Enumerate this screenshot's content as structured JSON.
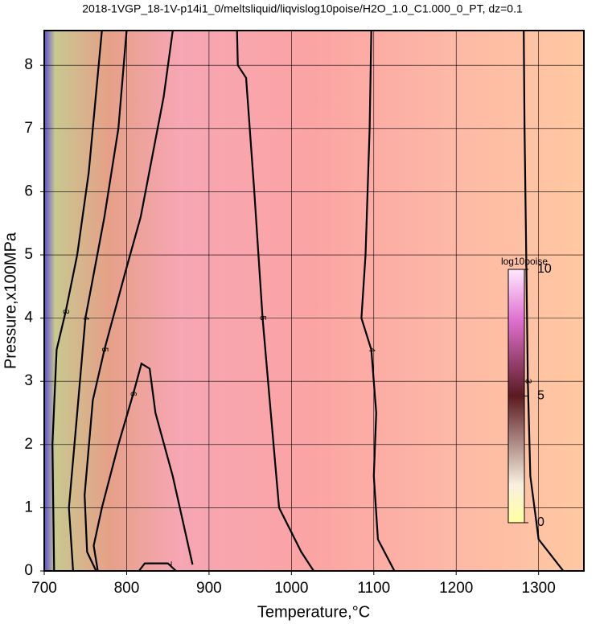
{
  "chart_data": {
    "type": "contour",
    "title": "2018-1VGP_18-1V-p14i1_0/meltsliquid/liqvislog10poise/H2O_1.0_C1.000_0_PT, dz=0.1",
    "x_label": "Temperature,°C",
    "y_label": "Pressure,x100MPa",
    "xlim": [
      700,
      1355
    ],
    "ylim": [
      0,
      8.55
    ],
    "xticks": [
      700,
      800,
      900,
      1000,
      1100,
      1200,
      1300
    ],
    "yticks": [
      0,
      1,
      2,
      3,
      4,
      5,
      6,
      7,
      8
    ],
    "grid": true,
    "contours": [
      {
        "level": 3,
        "x": [
          1330,
          1300,
          1290,
          1287,
          1285,
          1283,
          1282
        ],
        "y": [
          0,
          0.5,
          1.5,
          3,
          5,
          7,
          8.55
        ]
      },
      {
        "level": 4,
        "x": [
          1125,
          1105,
          1100,
          1103,
          1097,
          1085,
          1090,
          1095,
          1097
        ],
        "y": [
          0,
          0.5,
          1.5,
          2.5,
          3.5,
          4.0,
          5,
          7,
          8.55
        ]
      },
      {
        "level": 5,
        "x": [
          1027,
          1012,
          985,
          975,
          965,
          955,
          945,
          935,
          934
        ],
        "y": [
          0,
          0.3,
          1,
          2.5,
          4,
          6,
          7.8,
          8.0,
          8.55
        ]
      },
      {
        "level": 5,
        "x": [
          763,
          752,
          749,
          759,
          773,
          800,
          817,
          845,
          856
        ],
        "y": [
          0,
          0.3,
          1.2,
          2.7,
          3.5,
          4.8,
          5.6,
          7.5,
          8.55
        ]
      },
      {
        "level": 6,
        "x": [
          880,
          856,
          835,
          828,
          818,
          808,
          790,
          770,
          760,
          765
        ],
        "y": [
          0.1,
          1.5,
          2.5,
          3.2,
          3.28,
          2.8,
          2.0,
          1.0,
          0.4,
          0
        ]
      },
      {
        "level": 4,
        "x": [
          735,
          730,
          740,
          750,
          773,
          790,
          800
        ],
        "y": [
          0,
          1,
          2.5,
          4,
          5.6,
          7,
          8.55
        ]
      },
      {
        "level": 3,
        "x": [
          712,
          710,
          715,
          726,
          740,
          754,
          770
        ],
        "y": [
          0,
          2,
          3.5,
          4.1,
          5,
          6.3,
          8.55
        ]
      },
      {
        "level": 7,
        "x": [
          815,
          822,
          850,
          860
        ],
        "y": [
          0,
          0.12,
          0.12,
          0
        ]
      }
    ],
    "colorbar": {
      "label": "log10poise",
      "lim": [
        0,
        10
      ],
      "ticks": [
        0,
        5,
        10
      ]
    }
  }
}
